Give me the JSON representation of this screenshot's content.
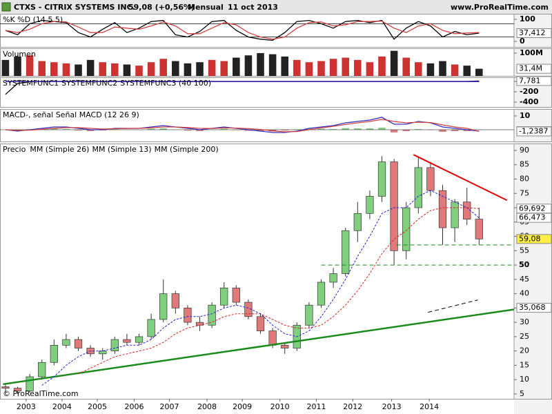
{
  "header": {
    "title": "CTXS - CITRIX SYSTEMS INC.",
    "quote": "59,08 (+0,56%)",
    "period": "Mensual",
    "date": "11 oct 2013",
    "site": "www.ProRealTime.com",
    "copyright": "© ProRealTime.com"
  },
  "chart_data": [
    {
      "type": "stochastic",
      "label": "%K %D (14 5 5)",
      "ylim": [
        -25,
        125
      ],
      "yticks": [
        0,
        100
      ],
      "levels": [
        80,
        20
      ],
      "series": [
        {
          "color": "#000000",
          "values": [
            50,
            30,
            80,
            95,
            90,
            85,
            40,
            20,
            55,
            85,
            40,
            60,
            90,
            95,
            30,
            20,
            45,
            90,
            95,
            50,
            20,
            10,
            5,
            40,
            90,
            95,
            80,
            60,
            90,
            95,
            85,
            95,
            10,
            60,
            90,
            70,
            20,
            45,
            30,
            37.412
          ]
        },
        {
          "color": "#d04040",
          "values": [
            50,
            40,
            55,
            80,
            90,
            88,
            65,
            40,
            40,
            65,
            60,
            55,
            70,
            88,
            70,
            35,
            35,
            60,
            85,
            75,
            40,
            20,
            10,
            20,
            60,
            85,
            88,
            70,
            75,
            90,
            90,
            92,
            60,
            40,
            70,
            80,
            50,
            35,
            38,
            40
          ]
        }
      ],
      "current": [
        {
          "value": 37.412,
          "label": "37,412",
          "color": "#000000",
          "fill": "#ffffff"
        }
      ]
    },
    {
      "type": "volume",
      "label": "Volumen",
      "up_color": "#cc3333",
      "down_color": "#222222",
      "ylim": [
        0,
        121000000
      ],
      "yticks": [
        {
          "value": 100000000,
          "label": "100M"
        }
      ],
      "values": [
        70000000,
        85000000,
        90000000,
        65000000,
        60000000,
        55000000,
        50000000,
        70000000,
        60000000,
        55000000,
        50000000,
        45000000,
        60000000,
        75000000,
        65000000,
        55000000,
        60000000,
        70000000,
        65000000,
        80000000,
        90000000,
        100000000,
        95000000,
        85000000,
        70000000,
        60000000,
        65000000,
        75000000,
        80000000,
        70000000,
        60000000,
        85000000,
        110000000,
        80000000,
        60000000,
        55000000,
        65000000,
        50000000,
        45000000,
        31400000
      ],
      "current": [
        {
          "value": 31400000,
          "label": "31,4M",
          "color": "#cc3333",
          "fill": "#ffffff"
        }
      ]
    },
    {
      "type": "line",
      "ylim": [
        -493,
        80
      ],
      "yticks": [
        0,
        -200,
        -400
      ],
      "series": [
        {
          "name": "SYSTEMFUNC1",
          "color": "#000000",
          "values": [
            -250,
            -40,
            -5,
            0,
            0,
            0,
            0,
            0,
            0,
            0,
            0,
            0,
            0,
            0,
            0,
            0,
            0,
            0,
            0,
            0,
            0,
            0,
            0,
            0,
            0,
            0,
            0,
            0,
            0,
            0,
            0,
            0,
            0,
            0,
            0,
            0,
            0,
            0,
            0,
            7.781
          ]
        },
        {
          "name": "SYSTEMFUNC2",
          "color": "#d00000",
          "values": [
            0,
            0,
            0,
            0,
            0,
            0,
            0,
            0,
            0,
            0,
            0,
            0,
            0,
            0,
            0,
            0,
            0,
            0,
            0,
            0,
            0,
            0,
            0,
            0,
            0,
            0,
            0,
            0,
            0,
            0,
            0,
            0,
            0,
            0,
            0,
            0,
            0,
            0,
            0,
            0
          ]
        },
        {
          "name": "SYSTEMFUNC3 (40 100)",
          "color": "#2020c0",
          "values": [
            -3,
            -3,
            -3,
            -3,
            -3,
            -3,
            -3,
            -3,
            -3,
            -3,
            -3,
            -3,
            -3,
            -3,
            -3,
            -3,
            -3,
            -3,
            -3,
            -3,
            -3,
            -3,
            -3,
            -3,
            -3,
            -3,
            -3,
            -3,
            -3,
            -3,
            -3,
            -3,
            -3,
            -3,
            -3,
            -3,
            -3,
            -3,
            -3,
            -3
          ]
        }
      ],
      "current": [
        {
          "value": 7.781,
          "label": "7,781",
          "color": "#000000",
          "fill": "#ffffff"
        }
      ]
    },
    {
      "type": "macd",
      "label": "MACD-, señal Señal MACD (12 26 9)",
      "ylim": [
        -8.5,
        15
      ],
      "yticks": [
        10
      ],
      "hist": {
        "up_color": "#6cc36c",
        "down_color": "#d06060",
        "values": [
          0,
          -0.5,
          0.3,
          0.7,
          1,
          0.5,
          -0.5,
          -1,
          -0.5,
          0.3,
          0.1,
          0,
          0.7,
          1,
          0,
          -0.6,
          -1,
          0.1,
          0.7,
          -0.2,
          -0.8,
          -1.2,
          -1.2,
          -0.5,
          0.3,
          1,
          0.7,
          0.5,
          1.2,
          1,
          1,
          1.5,
          -2,
          -1,
          0.5,
          -0.2,
          -1.5,
          -1,
          -1,
          0.2
        ]
      },
      "series": [
        {
          "color": "#3030c0",
          "values": [
            0,
            -1,
            0,
            1,
            2,
            2,
            1,
            0,
            0,
            1,
            1,
            1,
            2,
            3,
            2,
            1,
            0,
            1,
            2,
            1,
            0,
            -1,
            -2,
            -2,
            -1,
            1,
            2,
            3,
            5,
            6,
            7,
            9,
            4,
            4,
            6,
            5,
            2,
            1,
            0,
            -1.0388
          ]
        },
        {
          "color": "#d04040",
          "values": [
            0,
            -0.5,
            -0.3,
            0.3,
            1,
            1.5,
            1.5,
            1,
            0.5,
            0.7,
            0.9,
            1,
            1.3,
            2,
            2,
            1.6,
            1,
            0.9,
            1.3,
            1.2,
            0.8,
            0.2,
            -0.8,
            -1.5,
            -1.3,
            0,
            1.3,
            2.5,
            3.8,
            5,
            6,
            7.5,
            6,
            5,
            5.5,
            5.2,
            3.5,
            2,
            1,
            -1.2387
          ]
        }
      ],
      "current": [
        {
          "value": -1.0388,
          "label": "-1,0388",
          "color": "#3030c0",
          "fill": "#ffffff"
        },
        {
          "value": -1.2387,
          "label": "-1,2387",
          "color": "#000000",
          "fill": "#ffffff"
        }
      ]
    },
    {
      "type": "candlestick",
      "label": "Precio",
      "up_color": "#7fcf7f",
      "down_color": "#e07a7a",
      "xlim": [
        -0.45,
        41.88
      ],
      "xticks": [
        {
          "value": 1.7,
          "label": "2003"
        },
        {
          "value": 4.66,
          "label": "2004"
        },
        {
          "value": 7.56,
          "label": "2005"
        },
        {
          "value": 10.6,
          "label": "2006"
        },
        {
          "value": 13.5,
          "label": "2007"
        },
        {
          "value": 16.6,
          "label": "2008"
        },
        {
          "value": 19.5,
          "label": "2009"
        },
        {
          "value": 22.6,
          "label": "2010"
        },
        {
          "value": 25.6,
          "label": "2011"
        },
        {
          "value": 28.6,
          "label": "2012"
        },
        {
          "value": 31.8,
          "label": "2013"
        },
        {
          "value": 34.9,
          "label": "2014"
        }
      ],
      "ylim": [
        3.3,
        92.4
      ],
      "yticks": [
        5,
        10,
        15,
        20,
        25,
        30,
        35,
        40,
        45,
        50,
        55,
        60,
        65,
        70,
        75,
        80,
        85,
        90
      ],
      "open": [
        7.5,
        7,
        6,
        11,
        16,
        22,
        24,
        21,
        19,
        20,
        24,
        23,
        25,
        31,
        40,
        35,
        30,
        29,
        36,
        42,
        37,
        32,
        27,
        22,
        21,
        29,
        36,
        44,
        47,
        62,
        68,
        74,
        86,
        55,
        70,
        84,
        76,
        63,
        72,
        66
      ],
      "high": [
        8.5,
        7.5,
        12,
        17,
        24,
        26,
        25,
        22,
        21,
        25,
        26,
        26,
        33,
        45,
        41,
        36,
        32,
        37,
        44,
        43,
        38,
        33,
        28,
        23,
        30,
        37,
        45,
        49,
        63,
        72,
        76,
        88,
        87,
        72,
        88,
        86,
        78,
        73,
        77,
        70
      ],
      "low": [
        5.5,
        5,
        5.5,
        10,
        15,
        21,
        20,
        18,
        17,
        19,
        22,
        22,
        24,
        30,
        33,
        29,
        27,
        28,
        35,
        36,
        31,
        26,
        21,
        19,
        20,
        28,
        35,
        42,
        46,
        58,
        66,
        72,
        50,
        52,
        68,
        74,
        57,
        58,
        64,
        57
      ],
      "close": [
        7,
        6,
        11,
        16,
        22,
        24,
        21,
        19,
        20,
        24,
        23,
        25,
        31,
        40,
        35,
        30,
        29,
        36,
        42,
        37,
        32,
        27,
        22,
        21,
        29,
        36,
        44,
        47,
        62,
        68,
        74,
        86,
        55,
        70,
        84,
        76,
        63,
        72,
        66,
        59.08
      ],
      "series": [
        {
          "name": "MM (Simple 26)",
          "color": "#e02020",
          "values": [
            null,
            null,
            null,
            null,
            null,
            null,
            12,
            14,
            16,
            18,
            19,
            20,
            21,
            23,
            26,
            28,
            29,
            30,
            32,
            33,
            33,
            33,
            31,
            29,
            28,
            28,
            29,
            32,
            36,
            41,
            47,
            54,
            59,
            62,
            66,
            69,
            70,
            70,
            70,
            69.692
          ]
        },
        {
          "name": "MM (Simple 13)",
          "color": "#2020e0",
          "values": [
            null,
            null,
            null,
            8,
            11,
            15,
            18,
            20,
            20,
            21,
            22,
            22,
            24,
            28,
            31,
            32,
            32,
            33,
            35,
            36,
            35,
            33,
            29,
            26,
            25,
            27,
            32,
            38,
            45,
            53,
            60,
            68,
            70,
            70,
            74,
            76,
            74,
            72,
            70,
            66.473
          ]
        },
        {
          "name": "MM (Simple 200)",
          "color": "#000000"
        }
      ],
      "trendlines": [
        {
          "color": "#e00000",
          "width": 2,
          "dashed": false,
          "x": [
            33.6,
            41.3
          ],
          "y": [
            88.5,
            72.6
          ]
        },
        {
          "color": "#1a8a1a",
          "width": 2.5,
          "dashed": false,
          "x": [
            -0.2,
            41.88
          ],
          "y": [
            8.4,
            34.5
          ]
        },
        {
          "color": "#000000",
          "width": 1,
          "dashed": true,
          "x": [
            34.8,
            38.9
          ],
          "y": [
            33.5,
            37.8
          ]
        },
        {
          "color": "#1a8a1a",
          "width": 1,
          "dashed": true,
          "x": [
            32.2,
            41.88
          ],
          "y": [
            57,
            57
          ]
        },
        {
          "color": "#1a8a1a",
          "width": 1,
          "dashed": true,
          "x": [
            26,
            41.88
          ],
          "y": [
            50,
            50
          ]
        }
      ],
      "current": [
        {
          "value": 69.692,
          "label": "69,692",
          "color": "#e02020",
          "fill": "#ffffff"
        },
        {
          "value": 66.473,
          "label": "66,473",
          "color": "#2020e0",
          "fill": "#ffffff"
        },
        {
          "value": 59.08,
          "label": "59,08",
          "color": "#000000",
          "fill": "#ffee44"
        },
        {
          "value": 50,
          "label": "50",
          "color": "#000000",
          "fill": "none"
        },
        {
          "value": 35.068,
          "label": "35,068",
          "color": "#000000",
          "fill": "#ffffff"
        }
      ]
    }
  ]
}
